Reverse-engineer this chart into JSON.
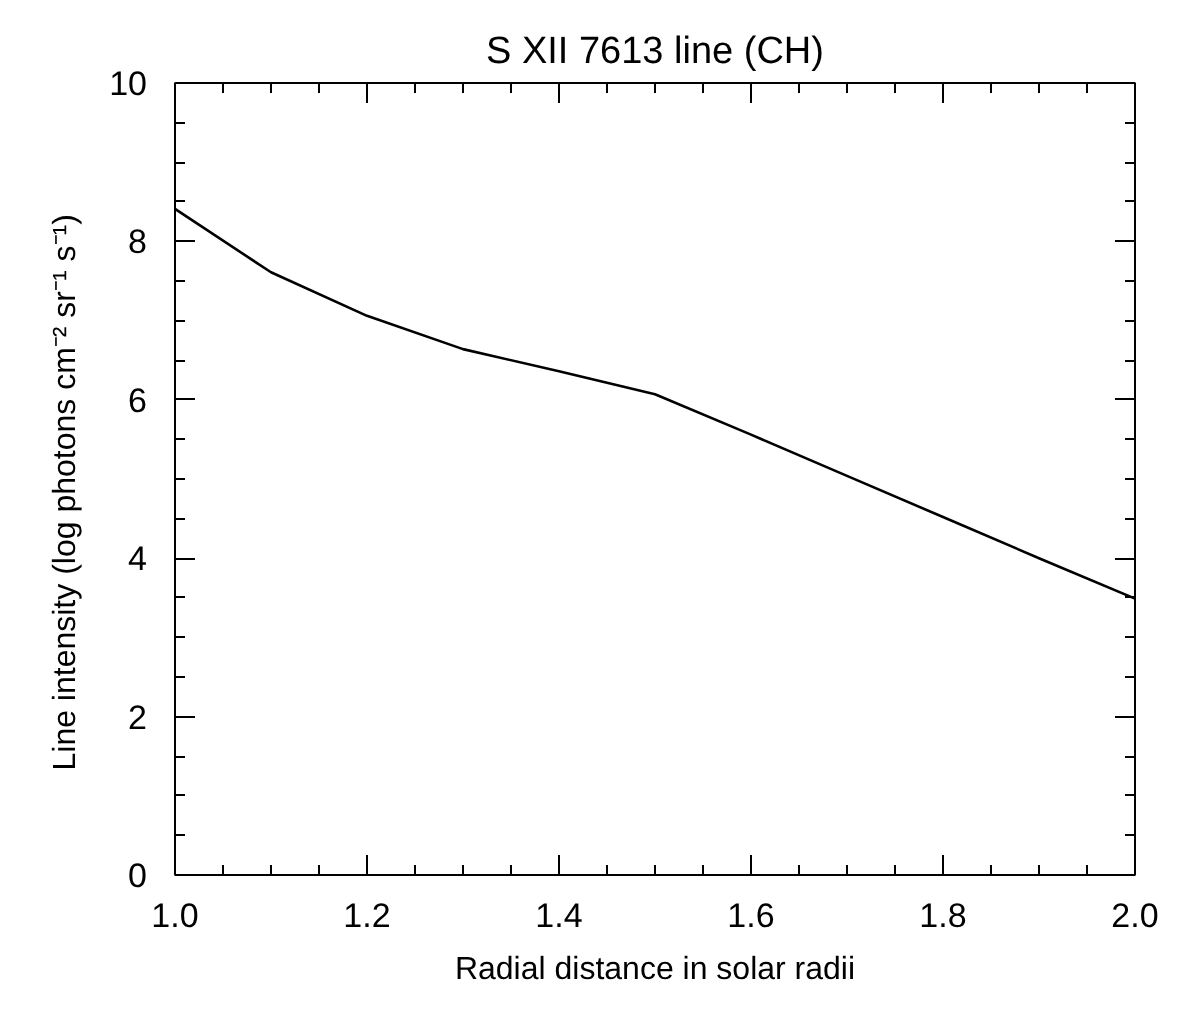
{
  "chart_data": {
    "type": "line",
    "title": "S XII 7613 line (CH)",
    "xlabel": "Radial distance in solar radii",
    "ylabel": "Line intensity (log photons  cm⁻²  sr⁻¹  s⁻¹)",
    "x": [
      1.0,
      1.1,
      1.2,
      1.3,
      1.4,
      1.5,
      1.6,
      1.7,
      1.8,
      1.9,
      2.0
    ],
    "series": [
      {
        "color": "#000000",
        "values": [
          8.41,
          7.61,
          7.06,
          6.64,
          6.36,
          6.07,
          5.56,
          5.04,
          4.52,
          4.0,
          3.49
        ]
      }
    ],
    "xlim": [
      1.0,
      2.0
    ],
    "ylim": [
      0,
      10
    ],
    "xticks": [
      {
        "value": 1.0,
        "label": "1.0"
      },
      {
        "value": 1.05,
        "label": null
      },
      {
        "value": 1.1,
        "label": null
      },
      {
        "value": 1.15,
        "label": null
      },
      {
        "value": 1.2,
        "label": "1.2"
      },
      {
        "value": 1.25,
        "label": null
      },
      {
        "value": 1.3,
        "label": null
      },
      {
        "value": 1.35,
        "label": null
      },
      {
        "value": 1.4,
        "label": "1.4"
      },
      {
        "value": 1.45,
        "label": null
      },
      {
        "value": 1.5,
        "label": null
      },
      {
        "value": 1.55,
        "label": null
      },
      {
        "value": 1.6,
        "label": "1.6"
      },
      {
        "value": 1.65,
        "label": null
      },
      {
        "value": 1.7,
        "label": null
      },
      {
        "value": 1.75,
        "label": null
      },
      {
        "value": 1.8,
        "label": "1.8"
      },
      {
        "value": 1.85,
        "label": null
      },
      {
        "value": 1.9,
        "label": null
      },
      {
        "value": 1.95,
        "label": null
      },
      {
        "value": 2.0,
        "label": "2.0"
      }
    ],
    "yticks": [
      0,
      {
        "value": 0.5,
        "label": null
      },
      {
        "value": 1,
        "label": null
      },
      {
        "value": 1.5,
        "label": null
      },
      2,
      {
        "value": 2.5,
        "label": null
      },
      {
        "value": 3,
        "label": null
      },
      {
        "value": 3.5,
        "label": null
      },
      4,
      {
        "value": 4.5,
        "label": null
      },
      {
        "value": 5,
        "label": null
      },
      {
        "value": 5.5,
        "label": null
      },
      6,
      {
        "value": 6.5,
        "label": null
      },
      {
        "value": 7,
        "label": null
      },
      {
        "value": 7.5,
        "label": null
      },
      8,
      {
        "value": 8.5,
        "label": null
      },
      {
        "value": 9,
        "label": null
      },
      {
        "value": 9.5,
        "label": null
      },
      10
    ],
    "grid": false,
    "marker": "none",
    "line_style": "solid"
  }
}
